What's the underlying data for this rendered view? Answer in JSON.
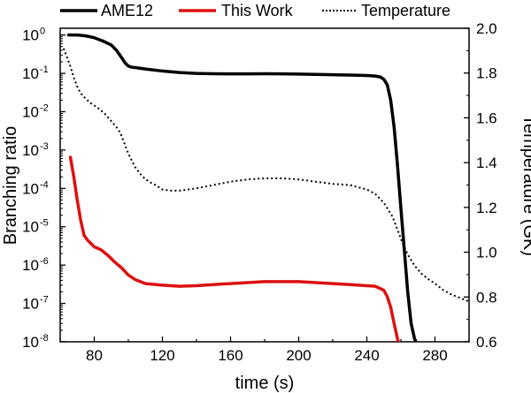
{
  "chart_data": {
    "type": "line",
    "xlabel": "time (s)",
    "ylabel": "Branching ratio",
    "y2label": "Temperature (GK)",
    "xlim": [
      60,
      300
    ],
    "ylim": [
      1e-08,
      1.5
    ],
    "y_scale": "log",
    "y2lim": [
      0.6,
      2.0
    ],
    "grid": false,
    "legend_position": "top",
    "x_ticks": [
      80,
      120,
      160,
      200,
      240,
      280
    ],
    "y_ticks": [
      {
        "base": "10",
        "exp": "0",
        "value": 1
      },
      {
        "base": "10",
        "exp": "-1",
        "value": 0.1
      },
      {
        "base": "10",
        "exp": "-2",
        "value": 0.01
      },
      {
        "base": "10",
        "exp": "-3",
        "value": 0.001
      },
      {
        "base": "10",
        "exp": "-4",
        "value": 0.0001
      },
      {
        "base": "10",
        "exp": "-5",
        "value": 1e-05
      },
      {
        "base": "10",
        "exp": "-6",
        "value": 1e-06
      },
      {
        "base": "10",
        "exp": "-7",
        "value": 1e-07
      },
      {
        "base": "10",
        "exp": "-8",
        "value": 1e-08
      }
    ],
    "y2_ticks": [
      "2.0",
      "1.8",
      "1.6",
      "1.4",
      "1.2",
      "1.0",
      "0.8",
      "0.6"
    ],
    "series": [
      {
        "name": "AME12",
        "axis": "left",
        "color": "#000000",
        "style": "solid",
        "x": [
          65,
          70,
          75,
          80,
          85,
          90,
          93,
          96,
          98,
          100,
          102,
          105,
          110,
          120,
          130,
          140,
          150,
          160,
          170,
          180,
          190,
          200,
          210,
          220,
          230,
          240,
          245,
          248,
          250,
          252,
          254,
          256,
          258,
          260,
          262,
          264,
          266,
          268,
          270
        ],
        "y": [
          1.0,
          1.0,
          0.95,
          0.85,
          0.7,
          0.55,
          0.4,
          0.26,
          0.19,
          0.155,
          0.145,
          0.14,
          0.13,
          0.115,
          0.105,
          0.1,
          0.098,
          0.097,
          0.097,
          0.098,
          0.097,
          0.096,
          0.094,
          0.092,
          0.09,
          0.088,
          0.085,
          0.08,
          0.07,
          0.05,
          0.02,
          0.004,
          0.0004,
          3e-05,
          2.5e-06,
          2e-07,
          3e-08,
          1.2e-08,
          8e-09
        ]
      },
      {
        "name": "This Work",
        "axis": "left",
        "color": "#dd1111",
        "style": "solid",
        "x": [
          66,
          68,
          70,
          72,
          74,
          76,
          80,
          84,
          88,
          92,
          96,
          100,
          104,
          110,
          120,
          130,
          140,
          150,
          160,
          170,
          180,
          190,
          200,
          210,
          220,
          230,
          240,
          245,
          250,
          252,
          254,
          256,
          258,
          259
        ],
        "y": [
          0.00065,
          0.0002,
          5e-05,
          1.5e-05,
          6e-06,
          4.5e-06,
          3e-06,
          2.5e-06,
          1.8e-06,
          1.2e-06,
          8.5e-07,
          5.5e-07,
          4.2e-07,
          3.3e-07,
          3e-07,
          2.8e-07,
          2.9e-07,
          3.1e-07,
          3.3e-07,
          3.5e-07,
          3.7e-07,
          3.7e-07,
          3.7e-07,
          3.5e-07,
          3.3e-07,
          3.1e-07,
          2.9e-07,
          2.8e-07,
          2.2e-07,
          1.5e-07,
          8e-08,
          3e-08,
          1.2e-08,
          8e-09
        ]
      },
      {
        "name": "Temperature",
        "axis": "right",
        "color": "#000000",
        "style": "dotted",
        "x": [
          62,
          64,
          66,
          68,
          70,
          72,
          75,
          78,
          82,
          86,
          90,
          94,
          96,
          100,
          104,
          108,
          112,
          116,
          120,
          125,
          130,
          140,
          150,
          160,
          170,
          180,
          190,
          200,
          210,
          220,
          230,
          240,
          245,
          250,
          255,
          258,
          261,
          264,
          268,
          272,
          276,
          280,
          285,
          290,
          295,
          300
        ],
        "y": [
          1.91,
          1.87,
          1.83,
          1.78,
          1.74,
          1.71,
          1.685,
          1.665,
          1.645,
          1.62,
          1.585,
          1.55,
          1.52,
          1.44,
          1.38,
          1.34,
          1.315,
          1.3,
          1.28,
          1.275,
          1.275,
          1.285,
          1.3,
          1.315,
          1.325,
          1.33,
          1.33,
          1.325,
          1.315,
          1.305,
          1.3,
          1.28,
          1.26,
          1.22,
          1.16,
          1.1,
          1.04,
          0.99,
          0.94,
          0.905,
          0.88,
          0.86,
          0.83,
          0.81,
          0.795,
          0.78
        ]
      }
    ]
  }
}
